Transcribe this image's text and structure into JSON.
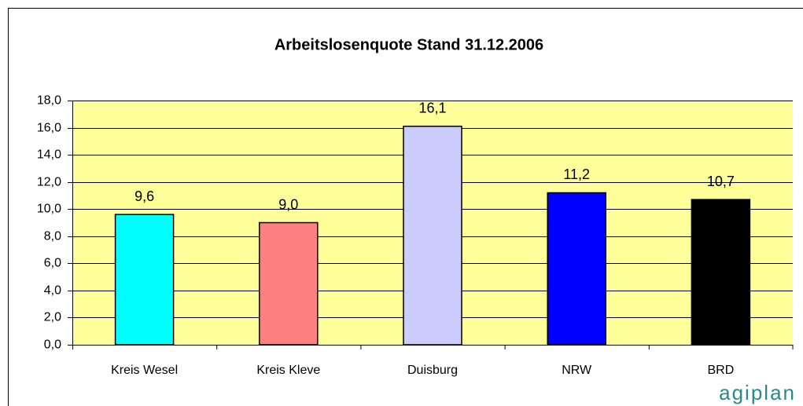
{
  "chart_data": {
    "type": "bar",
    "title": "Arbeitslosenquote Stand 31.12.2006",
    "categories": [
      "Kreis Wesel",
      "Kreis Kleve",
      "Duisburg",
      "NRW",
      "BRD"
    ],
    "values": [
      9.6,
      9.0,
      16.1,
      11.2,
      10.7
    ],
    "value_labels": [
      "9,6",
      "9,0",
      "16,1",
      "11,2",
      "10,7"
    ],
    "colors": [
      "#00ffff",
      "#ff8080",
      "#ccccff",
      "#0000ff",
      "#000000"
    ],
    "ylim": [
      0,
      18
    ],
    "yticks": [
      {
        "value": 0,
        "label": "0,0"
      },
      {
        "value": 2,
        "label": "2,0"
      },
      {
        "value": 4,
        "label": "4,0"
      },
      {
        "value": 6,
        "label": "6,0"
      },
      {
        "value": 8,
        "label": "8,0"
      },
      {
        "value": 10,
        "label": "10,0"
      },
      {
        "value": 12,
        "label": "12,0"
      },
      {
        "value": 14,
        "label": "14,0"
      },
      {
        "value": 16,
        "label": "16,0"
      },
      {
        "value": 18,
        "label": "18,0"
      }
    ],
    "grid": true
  },
  "logo": "agiplan"
}
